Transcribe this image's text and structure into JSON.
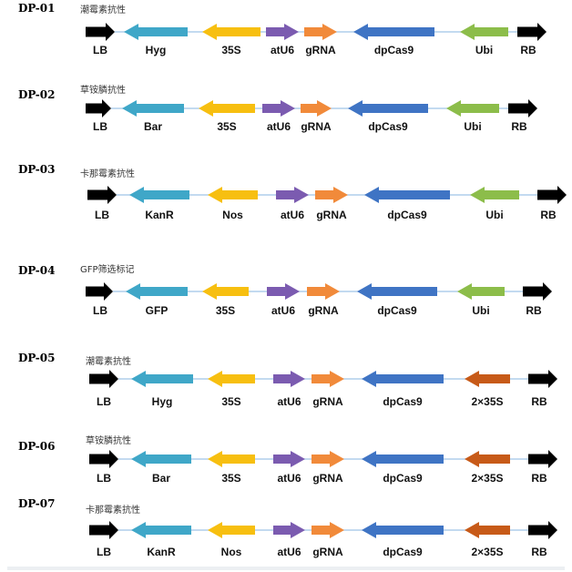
{
  "colors": {
    "border": "#000000",
    "hyg_kanr_bar_gfp": "#3fa7c8",
    "promoter_35s_nos": "#f7bf10",
    "atU6": "#7b5bb0",
    "gRNA": "#f18a3a",
    "dpCas9": "#3f74c4",
    "ubi": "#8cbd4a",
    "p2x35S": "#c75a18",
    "backbone": "#9fc3e7"
  },
  "constructs": [
    {
      "id": "DP-01",
      "note": "潮霉素抗性",
      "elements": [
        {
          "key": "lb",
          "label": "LB",
          "color": "border",
          "dir": "right"
        },
        {
          "key": "selection",
          "label": "Hyg",
          "color": "hyg_kanr_bar_gfp",
          "dir": "left"
        },
        {
          "key": "promoter",
          "label": "35S",
          "color": "promoter_35s_nos",
          "dir": "left"
        },
        {
          "key": "atu6",
          "label": "atU6",
          "color": "atU6",
          "dir": "right"
        },
        {
          "key": "grna",
          "label": "gRNA",
          "color": "gRNA",
          "dir": "right"
        },
        {
          "key": "dpcas9",
          "label": "dpCas9",
          "color": "dpCas9",
          "dir": "left"
        },
        {
          "key": "cas9promoter",
          "label": "Ubi",
          "color": "ubi",
          "dir": "left"
        },
        {
          "key": "rb",
          "label": "RB",
          "color": "border",
          "dir": "right"
        }
      ]
    },
    {
      "id": "DP-02",
      "note": "草铵膦抗性",
      "elements": [
        {
          "key": "lb",
          "label": "LB",
          "color": "border",
          "dir": "right"
        },
        {
          "key": "selection",
          "label": "Bar",
          "color": "hyg_kanr_bar_gfp",
          "dir": "left"
        },
        {
          "key": "promoter",
          "label": "35S",
          "color": "promoter_35s_nos",
          "dir": "left"
        },
        {
          "key": "atu6",
          "label": "atU6",
          "color": "atU6",
          "dir": "right"
        },
        {
          "key": "grna",
          "label": "gRNA",
          "color": "gRNA",
          "dir": "right"
        },
        {
          "key": "dpcas9",
          "label": "dpCas9",
          "color": "dpCas9",
          "dir": "left"
        },
        {
          "key": "cas9promoter",
          "label": "Ubi",
          "color": "ubi",
          "dir": "left"
        },
        {
          "key": "rb",
          "label": "RB",
          "color": "border",
          "dir": "right"
        }
      ]
    },
    {
      "id": "DP-03",
      "note": "卡那霉素抗性",
      "elements": [
        {
          "key": "lb",
          "label": "LB",
          "color": "border",
          "dir": "right"
        },
        {
          "key": "selection",
          "label": "KanR",
          "color": "hyg_kanr_bar_gfp",
          "dir": "left"
        },
        {
          "key": "promoter",
          "label": "Nos",
          "color": "promoter_35s_nos",
          "dir": "left"
        },
        {
          "key": "atu6",
          "label": "atU6",
          "color": "atU6",
          "dir": "right"
        },
        {
          "key": "grna",
          "label": "gRNA",
          "color": "gRNA",
          "dir": "right"
        },
        {
          "key": "dpcas9",
          "label": "dpCas9",
          "color": "dpCas9",
          "dir": "left"
        },
        {
          "key": "cas9promoter",
          "label": "Ubi",
          "color": "ubi",
          "dir": "left"
        },
        {
          "key": "rb",
          "label": "RB",
          "color": "border",
          "dir": "right"
        }
      ]
    },
    {
      "id": "DP-04",
      "note": "GFP筛选标记",
      "elements": [
        {
          "key": "lb",
          "label": "LB",
          "color": "border",
          "dir": "right"
        },
        {
          "key": "selection",
          "label": "GFP",
          "color": "hyg_kanr_bar_gfp",
          "dir": "left"
        },
        {
          "key": "promoter",
          "label": "35S",
          "color": "promoter_35s_nos",
          "dir": "left"
        },
        {
          "key": "atu6",
          "label": "atU6",
          "color": "atU6",
          "dir": "right"
        },
        {
          "key": "grna",
          "label": "gRNA",
          "color": "gRNA",
          "dir": "right"
        },
        {
          "key": "dpcas9",
          "label": "dpCas9",
          "color": "dpCas9",
          "dir": "left"
        },
        {
          "key": "cas9promoter",
          "label": "Ubi",
          "color": "ubi",
          "dir": "left"
        },
        {
          "key": "rb",
          "label": "RB",
          "color": "border",
          "dir": "right"
        }
      ]
    },
    {
      "id": "DP-05",
      "note": "潮霉素抗性",
      "elements": [
        {
          "key": "lb",
          "label": "LB",
          "color": "border",
          "dir": "right"
        },
        {
          "key": "selection",
          "label": "Hyg",
          "color": "hyg_kanr_bar_gfp",
          "dir": "left"
        },
        {
          "key": "promoter",
          "label": "35S",
          "color": "promoter_35s_nos",
          "dir": "left"
        },
        {
          "key": "atu6",
          "label": "atU6",
          "color": "atU6",
          "dir": "right"
        },
        {
          "key": "grna",
          "label": "gRNA",
          "color": "gRNA",
          "dir": "right"
        },
        {
          "key": "dpcas9",
          "label": "dpCas9",
          "color": "dpCas9",
          "dir": "left"
        },
        {
          "key": "cas9promoter",
          "label": "2×35S",
          "color": "p2x35S",
          "dir": "left"
        },
        {
          "key": "rb",
          "label": "RB",
          "color": "border",
          "dir": "right"
        }
      ]
    },
    {
      "id": "DP-06",
      "note": "草铵膦抗性",
      "elements": [
        {
          "key": "lb",
          "label": "LB",
          "color": "border",
          "dir": "right"
        },
        {
          "key": "selection",
          "label": "Bar",
          "color": "hyg_kanr_bar_gfp",
          "dir": "left"
        },
        {
          "key": "promoter",
          "label": "35S",
          "color": "promoter_35s_nos",
          "dir": "left"
        },
        {
          "key": "atu6",
          "label": "atU6",
          "color": "atU6",
          "dir": "right"
        },
        {
          "key": "grna",
          "label": "gRNA",
          "color": "gRNA",
          "dir": "right"
        },
        {
          "key": "dpcas9",
          "label": "dpCas9",
          "color": "dpCas9",
          "dir": "left"
        },
        {
          "key": "cas9promoter",
          "label": "2×35S",
          "color": "p2x35S",
          "dir": "left"
        },
        {
          "key": "rb",
          "label": "RB",
          "color": "border",
          "dir": "right"
        }
      ]
    },
    {
      "id": "DP-07",
      "note": "卡那霉素抗性",
      "elements": [
        {
          "key": "lb",
          "label": "LB",
          "color": "border",
          "dir": "right"
        },
        {
          "key": "selection",
          "label": "KanR",
          "color": "hyg_kanr_bar_gfp",
          "dir": "left"
        },
        {
          "key": "promoter",
          "label": "Nos",
          "color": "promoter_35s_nos",
          "dir": "left"
        },
        {
          "key": "atu6",
          "label": "atU6",
          "color": "atU6",
          "dir": "right"
        },
        {
          "key": "grna",
          "label": "gRNA",
          "color": "gRNA",
          "dir": "right"
        },
        {
          "key": "dpcas9",
          "label": "dpCas9",
          "color": "dpCas9",
          "dir": "left"
        },
        {
          "key": "cas9promoter",
          "label": "2×35S",
          "color": "p2x35S",
          "dir": "left"
        },
        {
          "key": "rb",
          "label": "RB",
          "color": "border",
          "dir": "right"
        }
      ]
    }
  ]
}
